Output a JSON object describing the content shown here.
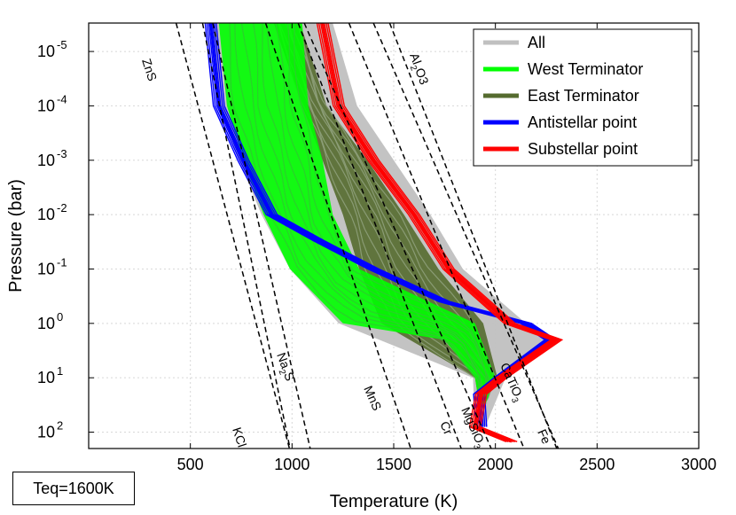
{
  "annotation": {
    "teq": "Teq=1600K"
  },
  "chart_data": {
    "type": "line",
    "xlabel": "Temperature (K)",
    "ylabel": "Pressure (bar)",
    "xlim": [
      0,
      3000
    ],
    "ylim": [
      200,
      3e-06
    ],
    "yscale": "log",
    "yaxis_inverted": true,
    "grid": true,
    "legend_position": "top-right",
    "xticks": [
      "500",
      "1000",
      "1500",
      "2000",
      "2500",
      "3000"
    ],
    "yticks": [
      {
        "base": "10",
        "exp": "-5",
        "value": 1e-05
      },
      {
        "base": "10",
        "exp": "-4",
        "value": 0.0001
      },
      {
        "base": "10",
        "exp": "-3",
        "value": 0.001
      },
      {
        "base": "10",
        "exp": "-2",
        "value": 0.01
      },
      {
        "base": "10",
        "exp": "-1",
        "value": 0.1
      },
      {
        "base": "10",
        "exp": "0",
        "value": 1
      },
      {
        "base": "10",
        "exp": "1",
        "value": 10
      },
      {
        "base": "10",
        "exp": "2",
        "value": 100
      }
    ],
    "legend": [
      {
        "name": "All",
        "color": "#c0c0c0"
      },
      {
        "name": "West Terminator",
        "color": "#00ff00"
      },
      {
        "name": "East Terminator",
        "color": "#556b2f"
      },
      {
        "name": "Antistellar point",
        "color": "#0000ff"
      },
      {
        "name": "Substellar point",
        "color": "#ff0000"
      }
    ],
    "envelopes": [
      {
        "name": "All",
        "color": "#c0c0c0",
        "left": [
          [
            590,
            3e-06
          ],
          [
            640,
            0.0001
          ],
          [
            740,
            0.001
          ],
          [
            850,
            0.01
          ],
          [
            990,
            0.1
          ],
          [
            1230,
            1
          ],
          [
            1890,
            10
          ],
          [
            1900,
            80
          ]
        ],
        "right": [
          [
            1200,
            3e-06
          ],
          [
            1320,
            0.0001
          ],
          [
            1500,
            0.001
          ],
          [
            1680,
            0.01
          ],
          [
            1840,
            0.1
          ],
          [
            2150,
            1
          ],
          [
            2310,
            2
          ],
          [
            2050,
            10
          ],
          [
            1950,
            80
          ]
        ]
      },
      {
        "name": "East Terminator",
        "color": "#556b2f",
        "left": [
          [
            910,
            3e-06
          ],
          [
            1050,
            0.0001
          ],
          [
            1150,
            0.001
          ],
          [
            1250,
            0.01
          ],
          [
            1330,
            0.1
          ],
          [
            1440,
            1
          ],
          [
            1900,
            10
          ],
          [
            1920,
            30
          ]
        ],
        "right": [
          [
            1040,
            3e-06
          ],
          [
            1170,
            0.0001
          ],
          [
            1370,
            0.001
          ],
          [
            1550,
            0.01
          ],
          [
            1720,
            0.1
          ],
          [
            1940,
            1
          ],
          [
            2010,
            10
          ],
          [
            1950,
            30
          ]
        ]
      },
      {
        "name": "West Terminator",
        "color": "#00ff00",
        "left": [
          [
            640,
            3e-06
          ],
          [
            680,
            0.0001
          ],
          [
            760,
            0.001
          ],
          [
            860,
            0.01
          ],
          [
            990,
            0.1
          ],
          [
            1250,
            1
          ],
          [
            1750,
            2
          ],
          [
            1900,
            10
          ],
          [
            1920,
            30
          ]
        ],
        "right": [
          [
            1050,
            3e-06
          ],
          [
            1080,
            0.0001
          ],
          [
            1150,
            0.001
          ],
          [
            1200,
            0.01
          ],
          [
            1330,
            0.1
          ],
          [
            1900,
            1
          ],
          [
            2000,
            10
          ],
          [
            1950,
            30
          ]
        ]
      }
    ],
    "series": [
      {
        "name": "Antistellar point",
        "color": "#0000ff",
        "points": [
          [
            600,
            3e-06
          ],
          [
            640,
            0.0001
          ],
          [
            760,
            0.001
          ],
          [
            900,
            0.01
          ],
          [
            1130,
            0.03
          ],
          [
            1400,
            0.1
          ],
          [
            1750,
            0.4
          ],
          [
            2150,
            1
          ],
          [
            2270,
            2
          ],
          [
            2020,
            10
          ],
          [
            1920,
            20
          ],
          [
            1930,
            80
          ]
        ]
      },
      {
        "name": "Substellar point",
        "color": "#ff0000",
        "points": [
          [
            1150,
            3e-06
          ],
          [
            1230,
            0.0001
          ],
          [
            1400,
            0.001
          ],
          [
            1600,
            0.01
          ],
          [
            1770,
            0.1
          ],
          [
            2070,
            1
          ],
          [
            2300,
            2
          ],
          [
            2030,
            10
          ],
          [
            1930,
            20
          ],
          [
            1900,
            80
          ],
          [
            2080,
            150
          ]
        ]
      }
    ],
    "condensation_curves": [
      {
        "label": "ZnS",
        "base": "ZnS",
        "sub": "",
        "rest": "",
        "points": [
          [
            430,
            3e-06
          ],
          [
            1000,
            300
          ]
        ]
      },
      {
        "label": "KCl",
        "base": "KCl",
        "sub": "",
        "rest": "",
        "points": [
          [
            560,
            3e-06
          ],
          [
            1000,
            300
          ]
        ]
      },
      {
        "label": "Na2S",
        "base": "Na",
        "sub": "2",
        "rest": "S",
        "points": [
          [
            610,
            3e-06
          ],
          [
            1100,
            300
          ]
        ]
      },
      {
        "label": "MnS",
        "base": "MnS",
        "sub": "",
        "rest": "",
        "points": [
          [
            870,
            3e-06
          ],
          [
            1600,
            300
          ]
        ]
      },
      {
        "label": "Cr",
        "base": "Cr",
        "sub": "",
        "rest": "",
        "points": [
          [
            1030,
            3e-06
          ],
          [
            1850,
            300
          ]
        ]
      },
      {
        "label": "MgSiO3",
        "base": "MgSiO",
        "sub": "3",
        "rest": "",
        "points": [
          [
            1060,
            3e-06
          ],
          [
            2000,
            300
          ]
        ]
      },
      {
        "label": "CaTiO3",
        "base": "CaTiO",
        "sub": "3",
        "rest": "",
        "points": [
          [
            1280,
            3e-06
          ],
          [
            2160,
            300
          ]
        ]
      },
      {
        "label": "Fe",
        "base": "Fe",
        "sub": "",
        "rest": "",
        "points": [
          [
            1400,
            3e-06
          ],
          [
            2330,
            300
          ]
        ]
      },
      {
        "label": "Al2O3",
        "base": "Al",
        "sub": "2",
        "rest": "O3",
        "points": [
          [
            1480,
            3e-06
          ],
          [
            2320,
            300
          ]
        ]
      }
    ]
  }
}
